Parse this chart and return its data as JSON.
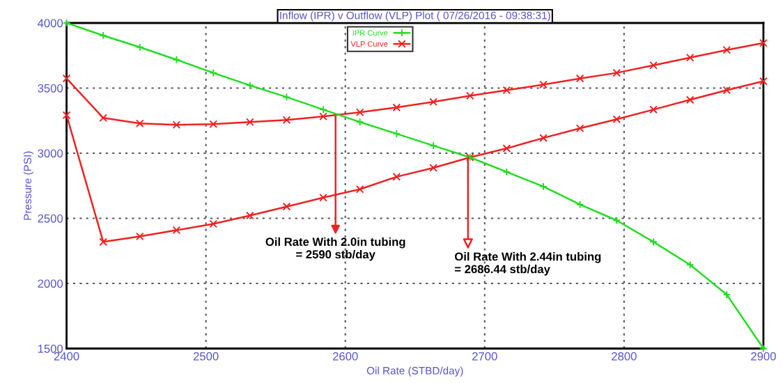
{
  "chart_data": {
    "type": "line",
    "title": "Inflow (IPR) v Outflow (VLP) Plot ( 07/26/2016 - 09:38:31)",
    "xlabel": "Oil Rate (STBD/day)",
    "ylabel": "Pressure (PSI)",
    "x": [
      2400,
      2426.3,
      2452.6,
      2478.9,
      2505.3,
      2531.6,
      2557.9,
      2584.2,
      2610.5,
      2636.8,
      2663.2,
      2689.5,
      2715.8,
      2742.1,
      2768.4,
      2794.7,
      2821.1,
      2847.4,
      2873.7,
      2900
    ],
    "series": [
      {
        "name": "IPR Curve",
        "color": "#22dd22",
        "marker": "cross",
        "values": [
          4000,
          3904,
          3814,
          3718,
          3617,
          3521,
          3431,
          3335,
          3239,
          3149,
          3058,
          2968,
          2856,
          2744,
          2606,
          2484,
          2319,
          2143,
          1914,
          1500
        ]
      },
      {
        "name": "VLP Curve",
        "color": "#ee2222",
        "marker": "x",
        "values": [
          3574,
          3271,
          3229,
          3218,
          3223,
          3239,
          3255,
          3282,
          3314,
          3351,
          3394,
          3441,
          3484,
          3527,
          3574,
          3617,
          3675,
          3734,
          3793,
          3846
        ]
      },
      {
        "color": "#ee2222",
        "marker": "x",
        "values": [
          3292,
          2319,
          2361,
          2409,
          2457,
          2521,
          2590,
          2659,
          2723,
          2819,
          2888,
          2968,
          3037,
          3117,
          3191,
          3261,
          3335,
          3410,
          3484,
          3553
        ]
      }
    ],
    "xlim": [
      2400,
      2900
    ],
    "ylim": [
      1500,
      4000
    ],
    "xticks": [
      2400,
      2500,
      2600,
      2700,
      2800,
      2900
    ],
    "yticks": [
      1500,
      2000,
      2500,
      3000,
      3500,
      4000
    ],
    "grid": true,
    "legend": "top",
    "line_style": "solid",
    "annotations": [
      {
        "text": "Oil Rate With 2.0in tubing\n= 2590 stb/day",
        "x": 2593,
        "y": 3282
      },
      {
        "text": "Oil Rate With 2.44in tubing\n= 2686.44 stb/day",
        "x": 2688,
        "y": 2968
      }
    ]
  }
}
